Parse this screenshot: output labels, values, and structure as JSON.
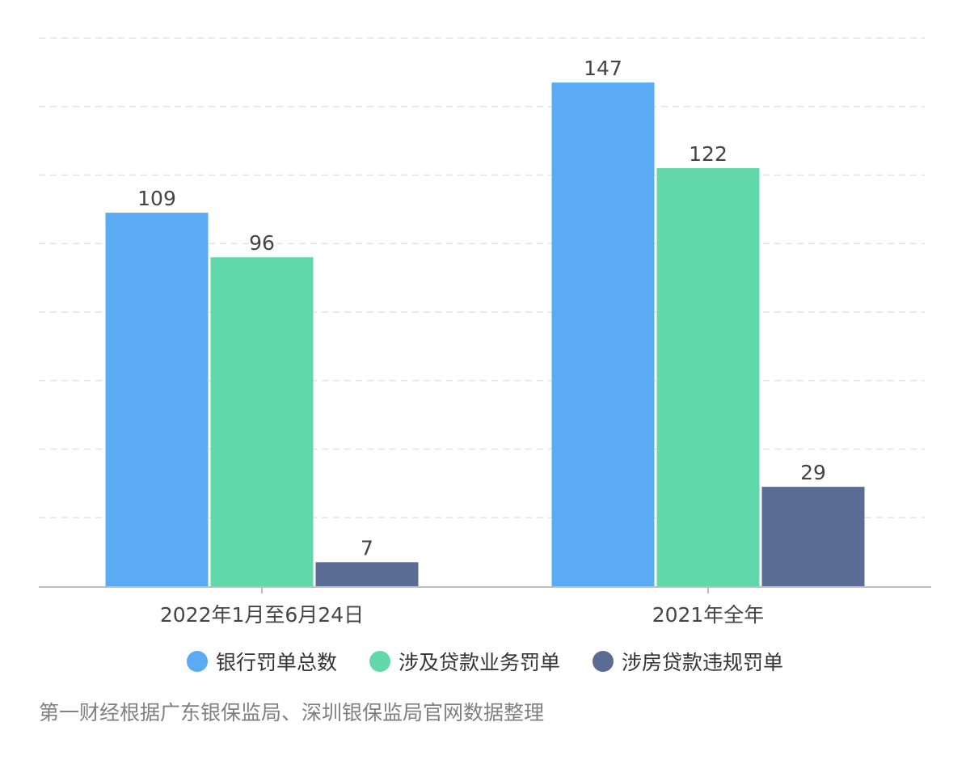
{
  "chart_data": {
    "type": "bar",
    "categories": [
      "2022年1月至6月24日",
      "2021年全年"
    ],
    "series": [
      {
        "name": "银行罚单总数",
        "values": [
          109,
          147
        ],
        "color": "#5aabf4"
      },
      {
        "name": "涉及贷款业务罚单",
        "values": [
          96,
          122
        ],
        "color": "#61d8a9"
      },
      {
        "name": "涉房贷款违规罚单",
        "values": [
          7,
          29
        ],
        "color": "#5a6c94"
      }
    ],
    "ylim": [
      0,
      160
    ],
    "grid": true,
    "legend_position": "bottom"
  },
  "source_note": "第一财经根据广东银保监局、深圳银保监局官网数据整理"
}
